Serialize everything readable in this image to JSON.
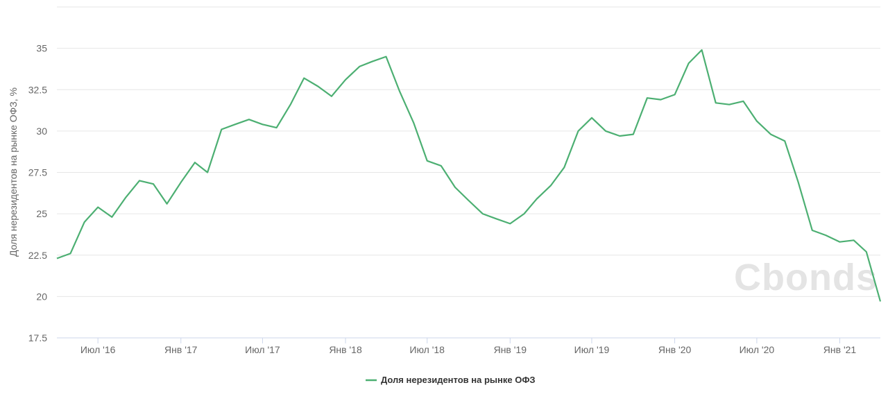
{
  "watermark": "Cbonds",
  "chart_data": {
    "type": "line",
    "ylabel": "Доля нерезидентов на рынке ОФЗ, %",
    "ylim": [
      17.5,
      37.5
    ],
    "yticks": [
      "17.5",
      "20",
      "22.5",
      "25",
      "27.5",
      "30",
      "32.5",
      "35"
    ],
    "ytick_values": [
      17.5,
      20,
      22.5,
      25,
      27.5,
      30,
      32.5,
      35
    ],
    "xlim": [
      "2016-04-01",
      "2021-04-01"
    ],
    "xticks": [
      {
        "label": "Июл '16",
        "date": "2016-07-01"
      },
      {
        "label": "Янв '17",
        "date": "2017-01-01"
      },
      {
        "label": "Июл '17",
        "date": "2017-07-01"
      },
      {
        "label": "Янв '18",
        "date": "2018-01-01"
      },
      {
        "label": "Июл '18",
        "date": "2018-07-01"
      },
      {
        "label": "Янв '19",
        "date": "2019-01-01"
      },
      {
        "label": "Июл '19",
        "date": "2019-07-01"
      },
      {
        "label": "Янв '20",
        "date": "2020-01-01"
      },
      {
        "label": "Июл '20",
        "date": "2020-07-01"
      },
      {
        "label": "Янв '21",
        "date": "2021-01-01"
      }
    ],
    "grid": true,
    "legend_position": "bottom-center",
    "series": [
      {
        "name": "Доля нерезидентов на рынке ОФЗ",
        "color": "#4caf72",
        "x": [
          "2016-04-01",
          "2016-05-01",
          "2016-06-01",
          "2016-07-01",
          "2016-08-01",
          "2016-09-01",
          "2016-10-01",
          "2016-11-01",
          "2016-12-01",
          "2017-01-01",
          "2017-02-01",
          "2017-03-01",
          "2017-04-01",
          "2017-05-01",
          "2017-06-01",
          "2017-07-01",
          "2017-08-01",
          "2017-09-01",
          "2017-10-01",
          "2017-11-01",
          "2017-12-01",
          "2018-01-01",
          "2018-02-01",
          "2018-03-01",
          "2018-04-01",
          "2018-05-01",
          "2018-06-01",
          "2018-07-01",
          "2018-08-01",
          "2018-09-01",
          "2018-10-01",
          "2018-11-01",
          "2018-12-01",
          "2019-01-01",
          "2019-02-01",
          "2019-03-01",
          "2019-04-01",
          "2019-05-01",
          "2019-06-01",
          "2019-07-01",
          "2019-08-01",
          "2019-09-01",
          "2019-10-01",
          "2019-11-01",
          "2019-12-01",
          "2020-01-01",
          "2020-02-01",
          "2020-03-01",
          "2020-04-01",
          "2020-05-01",
          "2020-06-01",
          "2020-07-01",
          "2020-08-01",
          "2020-09-01",
          "2020-10-01",
          "2020-11-01",
          "2020-12-01",
          "2021-01-01",
          "2021-02-01",
          "2021-03-01",
          "2021-04-01"
        ],
        "values": [
          22.3,
          22.6,
          24.5,
          25.4,
          24.8,
          26.0,
          27.0,
          26.8,
          25.6,
          26.9,
          28.1,
          27.5,
          30.1,
          30.4,
          30.7,
          30.4,
          30.2,
          31.6,
          33.2,
          32.7,
          32.1,
          33.1,
          33.9,
          34.2,
          34.5,
          32.4,
          30.5,
          28.2,
          27.9,
          26.6,
          25.8,
          25.0,
          24.7,
          24.4,
          25.0,
          25.9,
          26.7,
          27.8,
          30.0,
          30.8,
          30.0,
          29.7,
          29.8,
          32.0,
          31.9,
          32.2,
          34.1,
          34.9,
          31.7,
          31.6,
          31.8,
          30.6,
          29.8,
          29.4,
          26.9,
          24.0,
          23.7,
          23.3,
          23.4,
          22.7,
          19.7
        ]
      }
    ]
  }
}
